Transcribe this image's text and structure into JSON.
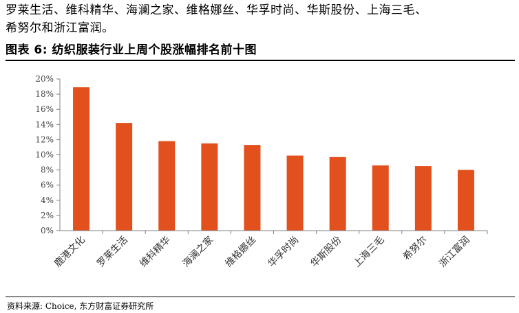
{
  "intro": {
    "line1": "罗莱生活、维科精华、海澜之家、维格娜丝、华孚时尚、华斯股份、上海三毛、",
    "line2": "希努尔和浙江富润。"
  },
  "figure_title": "图表 6: 纺织服装行业上周个股涨幅排名前十图",
  "source": "资料来源: Choice, 东方财富证券研究所",
  "colors": {
    "bar": "#E2501E",
    "axis": "#808080"
  },
  "chart_data": {
    "type": "bar",
    "title": "",
    "xlabel": "",
    "ylabel": "",
    "categories": [
      "鹿港文化",
      "罗莱生活",
      "维科精华",
      "海澜之家",
      "维格娜丝",
      "华孚时尚",
      "华斯股份",
      "上海三毛",
      "希努尔",
      "浙江富润"
    ],
    "values": [
      18.9,
      14.2,
      11.8,
      11.5,
      11.3,
      9.9,
      9.7,
      8.6,
      8.5,
      8.0
    ],
    "ylim": [
      0,
      20
    ],
    "y_ticks": [
      "0%",
      "2%",
      "4%",
      "6%",
      "8%",
      "10%",
      "12%",
      "14%",
      "16%",
      "18%",
      "20%"
    ],
    "grid": false,
    "legend": "none"
  }
}
